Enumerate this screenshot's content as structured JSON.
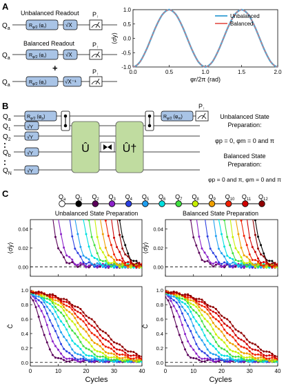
{
  "panels": {
    "A": {
      "label": "A",
      "unbal_title": "Unbalanced Readout",
      "bal_title": "Balanced Readout",
      "plus": "+",
      "qubit": "Q",
      "qubit_sub": "a",
      "gate_main": "R",
      "gate_sub": "φ/2",
      "gate_arg": "(φ",
      "gate_arg_sub": "r",
      "gate_arg_end": ")",
      "sqrtx": "√X",
      "sqrtx_inv": "√X⁻¹",
      "prob": "P",
      "prob_sub": "↑"
    },
    "B": {
      "label": "B",
      "qubits": [
        {
          "main": "Q",
          "sub": "a"
        },
        {
          "main": "Q",
          "sub": "1"
        },
        {
          "main": "Q",
          "sub": "2"
        },
        {
          "main": "Q",
          "sub": "b"
        },
        {
          "main": "Q",
          "sub": "N"
        }
      ],
      "sqrty": "√Y",
      "gate_main": "R",
      "gate_sub": "φ/2",
      "gate_arg1": "(φ",
      "gate_arg1_sub": "p",
      "gate_arg2": "(φ",
      "gate_arg2_sub": "m",
      "u": "Û",
      "udag": "Û†",
      "prob": "P",
      "prob_sub": "↑",
      "unbal_text": [
        "Unbalanced State",
        "Preparation:"
      ],
      "unbal_eq": "φp = 0, φm = 0 and π",
      "bal_text": [
        "Balanced State",
        "Preparation:"
      ],
      "bal_eq": "φp = 0 and π, φm = 0 and π"
    },
    "C": {
      "label": "C",
      "chain": [
        {
          "main": "Q",
          "sub": "a",
          "color": "#ffffff"
        },
        {
          "main": "Q",
          "sub": "1",
          "color": "#000000"
        },
        {
          "main": "Q",
          "sub": "2",
          "color": "#5a005a"
        },
        {
          "main": "Q",
          "sub": "3",
          "color": "#8a20c8"
        },
        {
          "main": "Q",
          "sub": "4",
          "color": "#2a3fe0"
        },
        {
          "main": "Q",
          "sub": "5",
          "color": "#1f9ff0"
        },
        {
          "main": "Q",
          "sub": "6",
          "color": "#00e0e0"
        },
        {
          "main": "Q",
          "sub": "7",
          "color": "#40e040"
        },
        {
          "main": "Q",
          "sub": "8",
          "color": "#c8f000"
        },
        {
          "main": "Q",
          "sub": "9",
          "color": "#f0a000"
        },
        {
          "main": "Q",
          "sub": "10",
          "color": "#f02000"
        },
        {
          "main": "Q",
          "sub": "11",
          "color": "#d00000"
        },
        {
          "main": "Q",
          "sub": "12",
          "color": "#900000"
        }
      ],
      "left_title": "Unbalanced State Preparation",
      "right_title": "Balanced State Preparation",
      "xlabel": "Cycles",
      "ylabel_top": "⟨σ̂y⟩",
      "ylabel_bottom": "C̄",
      "top_ticks": [
        "0.00",
        "0.02",
        "0.04"
      ],
      "bottom_ticks": [
        "0.0",
        "0.2",
        "0.4",
        "0.6",
        "0.8",
        "1.0"
      ],
      "x_ticks": [
        "0",
        "10",
        "20",
        "30",
        "40"
      ]
    }
  },
  "chart_data": [
    {
      "type": "line",
      "title": "",
      "xlabel": "φr/2π (rad)",
      "ylabel": "⟨σ̂y⟩",
      "xlim": [
        0,
        2.0
      ],
      "ylim": [
        -1.0,
        1.0
      ],
      "x_ticks": [
        "0.0",
        "0.5",
        "1.0",
        "1.5",
        "2.0"
      ],
      "y_ticks": [
        "-1.0",
        "-0.5",
        "0.0",
        "0.5",
        "1.0"
      ],
      "legend": "top-right",
      "series": [
        {
          "name": "Unbalanced",
          "color": "#4aa8d8",
          "x": [
            0,
            0.1,
            0.2,
            0.3,
            0.4,
            0.5,
            0.6,
            0.7,
            0.8,
            0.9,
            1.0,
            1.1,
            1.2,
            1.3,
            1.4,
            1.5,
            1.6,
            1.7,
            1.8,
            1.9,
            2.0
          ],
          "y": [
            -1.0,
            -0.81,
            -0.31,
            0.31,
            0.81,
            1.0,
            0.81,
            0.31,
            -0.31,
            -0.81,
            -1.0,
            -0.81,
            -0.31,
            0.31,
            0.81,
            1.0,
            0.81,
            0.31,
            -0.31,
            -0.81,
            -1.0
          ]
        },
        {
          "name": "Balanced",
          "color": "#e8706a",
          "x": [
            0,
            0.1,
            0.2,
            0.3,
            0.4,
            0.5,
            0.6,
            0.7,
            0.8,
            0.9,
            1.0,
            1.1,
            1.2,
            1.3,
            1.4,
            1.5,
            1.6,
            1.7,
            1.8,
            1.9,
            2.0
          ],
          "y": [
            -1.0,
            -0.81,
            -0.31,
            0.31,
            0.81,
            1.0,
            0.81,
            0.31,
            -0.31,
            -0.81,
            -1.0,
            -0.81,
            -0.31,
            0.31,
            0.81,
            1.0,
            0.81,
            0.31,
            -0.31,
            -0.81,
            -1.0
          ]
        }
      ]
    },
    {
      "type": "line",
      "title": "Unbalanced State Preparation",
      "xlabel": "Cycles",
      "ylabel": "⟨σ̂y⟩",
      "xlim": [
        0,
        40
      ],
      "ylim": [
        -0.01,
        0.05
      ],
      "x_ticks": [
        "0",
        "10",
        "20",
        "30",
        "40"
      ],
      "y_ticks": [
        "0.00",
        "0.02",
        "0.04"
      ],
      "dashed_zero": true,
      "curve_params": [
        {
          "color": "#000000",
          "onset": 32
        },
        {
          "color": "#5a005a",
          "onset": 8
        },
        {
          "color": "#8a20c8",
          "onset": 10
        },
        {
          "color": "#2a3fe0",
          "onset": 14
        },
        {
          "color": "#1f9ff0",
          "onset": 16
        },
        {
          "color": "#00e0e0",
          "onset": 19
        },
        {
          "color": "#40e040",
          "onset": 21
        },
        {
          "color": "#c8f000",
          "onset": 23
        },
        {
          "color": "#f0a000",
          "onset": 25
        },
        {
          "color": "#f02000",
          "onset": 27
        },
        {
          "color": "#d00000",
          "onset": 29
        },
        {
          "color": "#900000",
          "onset": 31
        }
      ]
    },
    {
      "type": "line",
      "title": "Balanced State Preparation",
      "xlabel": "Cycles",
      "ylabel": "⟨σ̂y⟩",
      "xlim": [
        0,
        40
      ],
      "ylim": [
        -0.01,
        0.05
      ],
      "x_ticks": [
        "0",
        "10",
        "20",
        "30",
        "40"
      ],
      "y_ticks": [
        "0.00",
        "0.02",
        "0.04"
      ],
      "dashed_zero": true,
      "curve_params": [
        {
          "color": "#000000",
          "onset": 32
        },
        {
          "color": "#5a005a",
          "onset": 9
        },
        {
          "color": "#8a20c8",
          "onset": 11
        },
        {
          "color": "#2a3fe0",
          "onset": 14
        },
        {
          "color": "#1f9ff0",
          "onset": 17
        },
        {
          "color": "#00e0e0",
          "onset": 19
        },
        {
          "color": "#40e040",
          "onset": 21
        },
        {
          "color": "#c8f000",
          "onset": 23
        },
        {
          "color": "#f0a000",
          "onset": 25
        },
        {
          "color": "#f02000",
          "onset": 27
        },
        {
          "color": "#d00000",
          "onset": 29
        },
        {
          "color": "#900000",
          "onset": 31
        }
      ]
    },
    {
      "type": "line",
      "title": "",
      "xlabel": "Cycles",
      "ylabel": "C̄",
      "xlim": [
        0,
        40
      ],
      "ylim": [
        -0.05,
        1.05
      ],
      "x_ticks": [
        "0",
        "10",
        "20",
        "30",
        "40"
      ],
      "y_ticks": [
        "0.0",
        "0.2",
        "0.4",
        "0.6",
        "0.8",
        "1.0"
      ],
      "dashed_zero": true,
      "curve_params": [
        {
          "color": "#5a005a",
          "t0": 4,
          "tau": 4
        },
        {
          "color": "#8a20c8",
          "t0": 6,
          "tau": 5
        },
        {
          "color": "#2a3fe0",
          "t0": 8,
          "tau": 6
        },
        {
          "color": "#1f9ff0",
          "t0": 10,
          "tau": 7
        },
        {
          "color": "#00e0e0",
          "t0": 12,
          "tau": 8
        },
        {
          "color": "#40e040",
          "t0": 14,
          "tau": 9
        },
        {
          "color": "#c8f000",
          "t0": 16,
          "tau": 10
        },
        {
          "color": "#f0a000",
          "t0": 18,
          "tau": 11
        },
        {
          "color": "#f02000",
          "t0": 20,
          "tau": 12
        },
        {
          "color": "#d00000",
          "t0": 22,
          "tau": 13
        },
        {
          "color": "#900000",
          "t0": 24,
          "tau": 14
        }
      ]
    },
    {
      "type": "line",
      "title": "",
      "xlabel": "Cycles",
      "ylabel": "C̄",
      "xlim": [
        0,
        40
      ],
      "ylim": [
        -0.05,
        1.05
      ],
      "x_ticks": [
        "0",
        "10",
        "20",
        "30",
        "40"
      ],
      "y_ticks": [
        "0.0",
        "0.2",
        "0.4",
        "0.6",
        "0.8",
        "1.0"
      ],
      "dashed_zero": true,
      "curve_params": [
        {
          "color": "#5a005a",
          "t0": 4,
          "tau": 4
        },
        {
          "color": "#8a20c8",
          "t0": 6,
          "tau": 5
        },
        {
          "color": "#2a3fe0",
          "t0": 8,
          "tau": 6
        },
        {
          "color": "#1f9ff0",
          "t0": 10,
          "tau": 7
        },
        {
          "color": "#00e0e0",
          "t0": 12,
          "tau": 8
        },
        {
          "color": "#40e040",
          "t0": 14,
          "tau": 9
        },
        {
          "color": "#c8f000",
          "t0": 16,
          "tau": 10
        },
        {
          "color": "#f0a000",
          "t0": 18,
          "tau": 11
        },
        {
          "color": "#f02000",
          "t0": 20,
          "tau": 12
        },
        {
          "color": "#d00000",
          "t0": 22,
          "tau": 13
        },
        {
          "color": "#900000",
          "t0": 24,
          "tau": 14
        }
      ]
    }
  ]
}
